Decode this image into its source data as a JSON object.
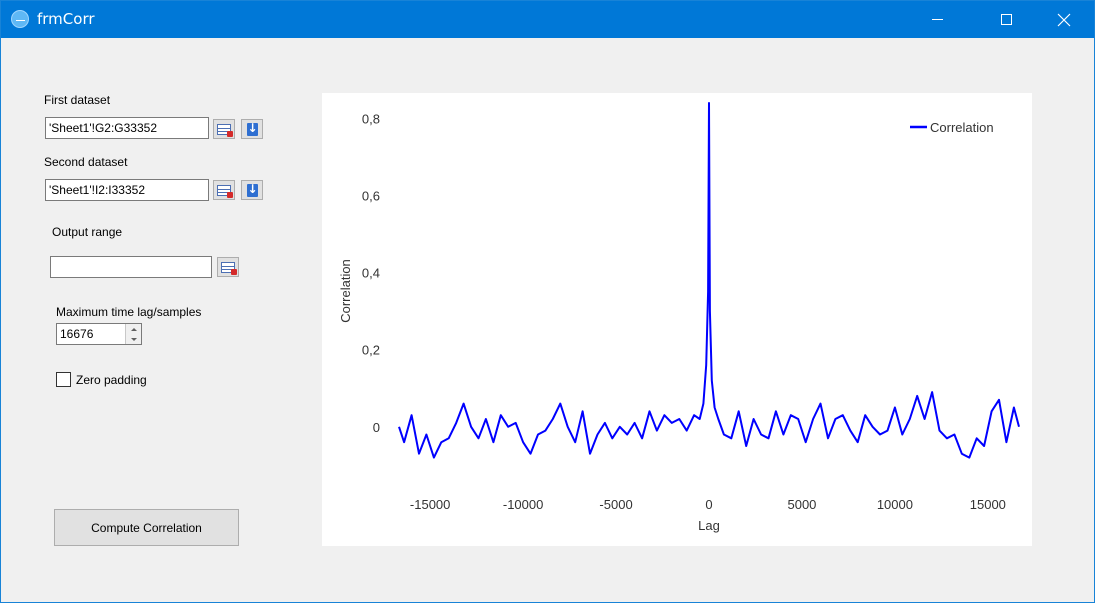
{
  "window": {
    "title": "frmCorr"
  },
  "form": {
    "first_dataset_label": "First dataset",
    "first_dataset_value": "'Sheet1'!G2:G33352",
    "second_dataset_label": "Second dataset",
    "second_dataset_value": "'Sheet1'!I2:I33352",
    "output_range_label": "Output range",
    "output_range_value": "",
    "max_lag_label": "Maximum time lag/samples",
    "max_lag_value": "16676",
    "zero_padding_label": "Zero padding",
    "zero_padding_checked": false,
    "compute_button": "Compute Correlation"
  },
  "icons": {
    "range_select": "sheet-range-icon",
    "fill_down": "arrow-down-icon"
  },
  "chart_data": {
    "type": "line",
    "title": "",
    "xlabel": "Lag",
    "ylabel": "Correlation",
    "xlim": [
      -16676,
      16676
    ],
    "ylim": [
      -0.12,
      0.84
    ],
    "x_ticks": [
      -15000,
      -10000,
      -5000,
      0,
      5000,
      10000,
      15000
    ],
    "x_tick_labels": [
      "-15000",
      "-10000",
      "-5000",
      "0",
      "5000",
      "10000",
      "15000"
    ],
    "y_ticks": [
      0,
      0.2,
      0.4,
      0.6,
      0.8
    ],
    "y_tick_labels": [
      "0",
      "0,2",
      "0,4",
      "0,6",
      "0,8"
    ],
    "grid": false,
    "legend_position": "top-right",
    "color": "#0000ff",
    "series": [
      {
        "name": "Correlation",
        "x": [
          -16676,
          -16400,
          -16000,
          -15600,
          -15200,
          -14800,
          -14400,
          -14000,
          -13600,
          -13200,
          -12800,
          -12400,
          -12000,
          -11600,
          -11200,
          -10800,
          -10400,
          -10000,
          -9600,
          -9200,
          -8800,
          -8400,
          -8000,
          -7600,
          -7200,
          -6800,
          -6400,
          -6000,
          -5600,
          -5200,
          -4800,
          -4400,
          -4000,
          -3600,
          -3200,
          -2800,
          -2400,
          -2000,
          -1600,
          -1200,
          -800,
          -500,
          -300,
          -150,
          -50,
          0,
          50,
          150,
          300,
          500,
          800,
          1200,
          1600,
          2000,
          2400,
          2800,
          3200,
          3600,
          4000,
          4400,
          4800,
          5200,
          5600,
          6000,
          6400,
          6800,
          7200,
          7600,
          8000,
          8400,
          8800,
          9200,
          9600,
          10000,
          10400,
          10800,
          11200,
          11600,
          12000,
          12400,
          12800,
          13200,
          13600,
          14000,
          14400,
          14800,
          15200,
          15600,
          16000,
          16400,
          16676
        ],
        "y": [
          0.0,
          -0.04,
          0.03,
          -0.07,
          -0.02,
          -0.08,
          -0.04,
          -0.03,
          0.01,
          0.06,
          0.0,
          -0.03,
          0.02,
          -0.04,
          0.03,
          0.0,
          0.01,
          -0.04,
          -0.07,
          -0.02,
          -0.01,
          0.02,
          0.06,
          0.0,
          -0.04,
          0.04,
          -0.07,
          -0.02,
          0.01,
          -0.03,
          0.0,
          -0.02,
          0.01,
          -0.03,
          0.04,
          -0.01,
          0.03,
          0.01,
          0.02,
          -0.01,
          0.03,
          0.02,
          0.06,
          0.16,
          0.35,
          0.84,
          0.3,
          0.12,
          0.05,
          0.02,
          -0.02,
          -0.03,
          0.04,
          -0.05,
          0.02,
          -0.02,
          -0.03,
          0.04,
          -0.02,
          0.03,
          0.02,
          -0.04,
          0.02,
          0.06,
          -0.03,
          0.02,
          0.03,
          -0.01,
          -0.04,
          0.03,
          0.0,
          -0.02,
          -0.01,
          0.05,
          -0.02,
          0.02,
          0.08,
          0.02,
          0.09,
          -0.01,
          -0.03,
          -0.02,
          -0.07,
          -0.08,
          -0.03,
          -0.05,
          0.04,
          0.07,
          -0.04,
          0.05,
          0.0
        ]
      }
    ]
  }
}
